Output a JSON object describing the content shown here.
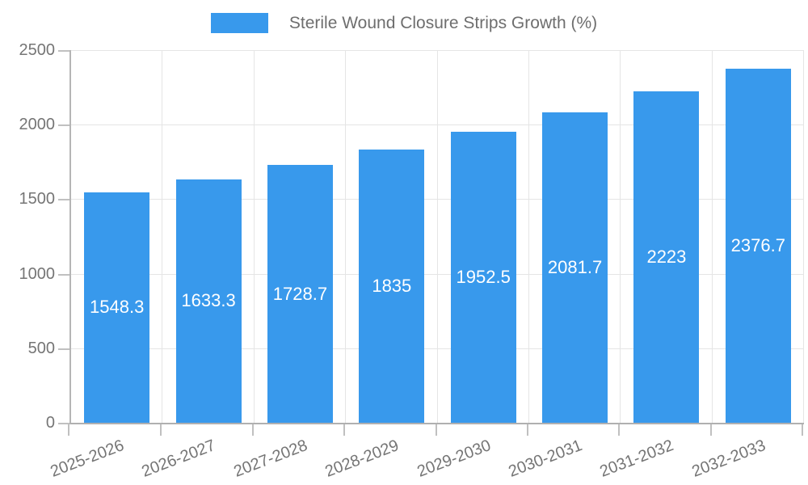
{
  "legend": {
    "swatch_color": "#3899ec",
    "label": "Sterile Wound Closure Strips Growth (%)"
  },
  "chart_data": {
    "type": "bar",
    "title": "Sterile Wound Closure Strips Growth (%)",
    "categories": [
      "2025-2026",
      "2026-2027",
      "2027-2028",
      "2028-2029",
      "2029-2030",
      "2030-2031",
      "2031-2032",
      "2032-2033"
    ],
    "values": [
      1548.3,
      1633.3,
      1728.7,
      1835,
      1952.5,
      2081.7,
      2223,
      2376.7
    ],
    "value_labels": [
      "1548.3",
      "1633.3",
      "1728.7",
      "1835",
      "1952.5",
      "2081.7",
      "2223",
      "2376.7"
    ],
    "xlabel": "",
    "ylabel": "",
    "ylim": [
      0,
      2500
    ],
    "yticks": [
      0,
      500,
      1000,
      1500,
      2000,
      2500
    ],
    "ytick_labels": [
      "0",
      "500",
      "1000",
      "1500",
      "2000",
      "2500"
    ],
    "grid": true,
    "legend_position": "top-center",
    "bar_color": "#3899ec",
    "value_label_color": "#ffffff",
    "axis_text_color": "#757575",
    "gridline_color": "#e5e5e5",
    "axis_line_color": "#b0b0b0"
  }
}
